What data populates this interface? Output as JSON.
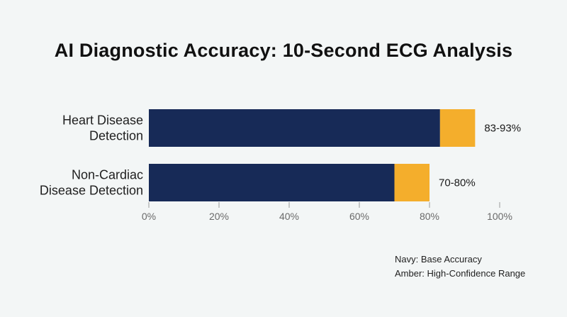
{
  "chart_data": {
    "type": "bar",
    "orientation": "horizontal",
    "stacked": true,
    "title": "AI Diagnostic Accuracy: 10-Second ECG Analysis",
    "categories": [
      [
        "Heart Disease",
        "Detection"
      ],
      [
        "Non-Cardiac",
        "Disease Detection"
      ]
    ],
    "series": [
      {
        "name": "Base Accuracy",
        "color": "#172a57",
        "values": [
          83,
          70
        ]
      },
      {
        "name": "High-Confidence Range",
        "color": "#f4ae2c",
        "values": [
          10,
          10
        ]
      }
    ],
    "data_labels": [
      "83-93%",
      "70-80%"
    ],
    "xlim": [
      0,
      100
    ],
    "x_ticks": [
      0,
      20,
      40,
      60,
      80,
      100
    ],
    "x_tick_labels": [
      "0%",
      "20%",
      "40%",
      "60%",
      "80%",
      "100%"
    ],
    "grid": false,
    "legend_placement": "bottom-right",
    "legend_lines": [
      "Navy: Base Accuracy",
      "Amber: High-Confidence Range"
    ]
  }
}
